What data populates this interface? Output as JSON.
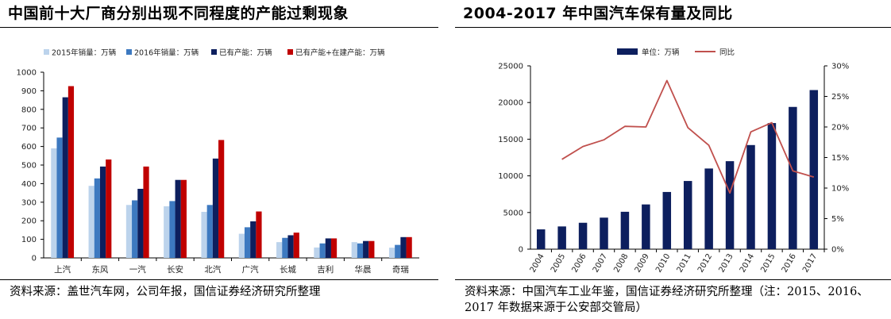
{
  "left": {
    "title": "中国前十大厂商分别出现不同程度的产能过剩现象",
    "source": "资料来源：盖世汽车网，公司年报，国信证券经济研究所整理",
    "chart_data": {
      "type": "bar",
      "categories": [
        "上汽",
        "东风",
        "一汽",
        "长安",
        "北汽",
        "广汽",
        "长城",
        "吉利",
        "华晨",
        "奇瑞"
      ],
      "series": [
        {
          "name": "2015年销量：万辆",
          "color": "#bcd3ec",
          "values": [
            590,
            388,
            285,
            278,
            248,
            130,
            85,
            56,
            85,
            55
          ]
        },
        {
          "name": "2016年销量：万辆",
          "color": "#3d79c0",
          "values": [
            648,
            428,
            310,
            306,
            285,
            165,
            108,
            78,
            78,
            70
          ]
        },
        {
          "name": "已有产能：万辆",
          "color": "#0d1f5e",
          "values": [
            865,
            492,
            372,
            420,
            535,
            197,
            122,
            105,
            91,
            112
          ]
        },
        {
          "name": "已有产能+在建产能：万辆",
          "color": "#c00000",
          "values": [
            925,
            530,
            492,
            420,
            635,
            250,
            136,
            105,
            91,
            112
          ]
        }
      ],
      "ylim": [
        0,
        1000
      ],
      "yticks": [
        "0",
        "100",
        "200",
        "300",
        "400",
        "500",
        "600",
        "700",
        "800",
        "900",
        "1000"
      ],
      "legend": "top",
      "grid": false
    }
  },
  "right": {
    "title": "2004-2017 年中国汽车保有量及同比",
    "source_lines": [
      "资料来源：中国汽车工业年鉴，国信证券经济研究所整理（注：2015、2016、",
      "2017 年数据来源于公安部交管局）"
    ],
    "chart_data": {
      "type": "bar",
      "x": [
        "2004",
        "2005",
        "2006",
        "2007",
        "2008",
        "2009",
        "2010",
        "2011",
        "2012",
        "2013",
        "2014",
        "2015",
        "2016",
        "2017"
      ],
      "series": [
        {
          "name": "单位：万辆",
          "type": "bar",
          "axis": "left",
          "color": "#0d1f5e",
          "values": [
            2700,
            3100,
            3600,
            4300,
            5100,
            6100,
            7800,
            9300,
            11000,
            12000,
            14200,
            17200,
            19400,
            21700
          ]
        },
        {
          "name": "同比",
          "type": "line",
          "axis": "right",
          "color": "#c0504d",
          "values": [
            null,
            14.7,
            16.8,
            17.9,
            20.1,
            20.0,
            27.6,
            19.9,
            17.0,
            9.2,
            19.2,
            20.7,
            12.8,
            11.8
          ]
        }
      ],
      "ylim_left": [
        0,
        25000
      ],
      "yticks_left": [
        "0",
        "5000",
        "10000",
        "15000",
        "20000",
        "25000"
      ],
      "ylim_right": [
        0,
        30
      ],
      "yticks_right": [
        "0%",
        "5%",
        "10%",
        "15%",
        "20%",
        "25%",
        "30%"
      ],
      "legend": "top",
      "grid": false
    }
  }
}
